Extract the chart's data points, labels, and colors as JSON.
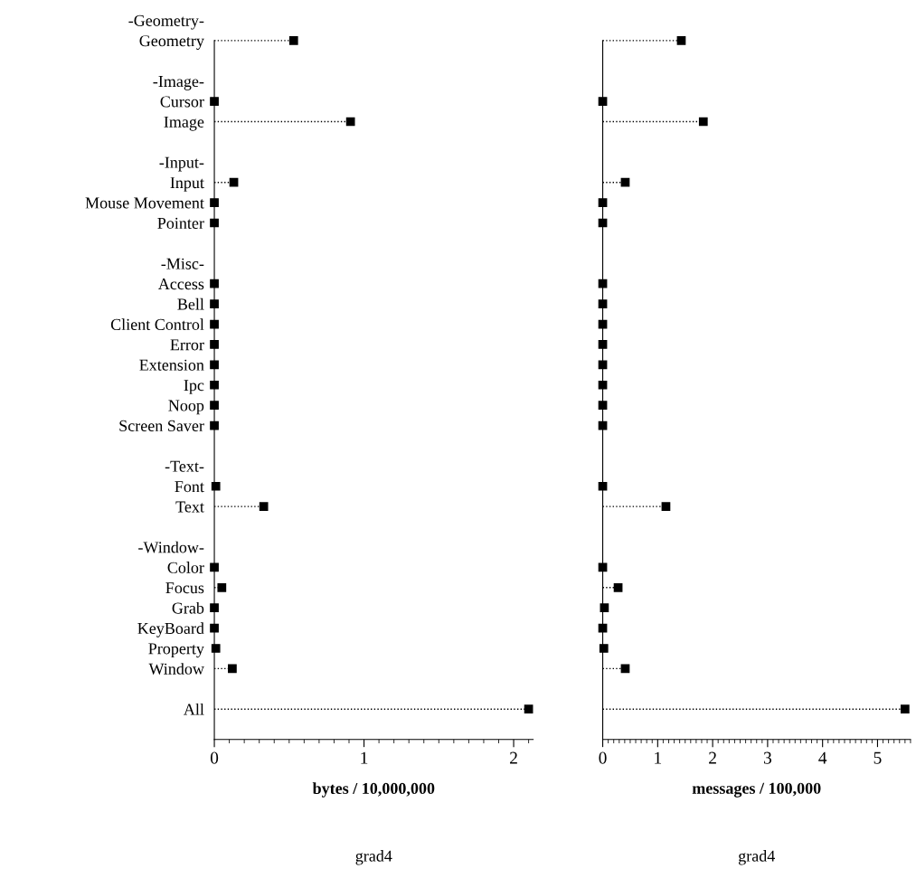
{
  "chart_data": [
    {
      "type": "lollipop",
      "orientation": "horizontal",
      "color": "#000000",
      "marker": "square",
      "line_style": "dotted",
      "categories": [
        "-Geometry-",
        "Geometry",
        null,
        "-Image-",
        "Cursor",
        "Image",
        null,
        "-Input-",
        "Input",
        "Mouse Movement",
        "Pointer",
        null,
        "-Misc-",
        "Access",
        "Bell",
        "Client Control",
        "Error",
        "Extension",
        "Ipc",
        "Noop",
        "Screen Saver",
        null,
        "-Text-",
        "Font",
        "Text",
        null,
        "-Window-",
        "Color",
        "Focus",
        "Grab",
        "KeyBoard",
        "Property",
        "Window",
        null,
        "All"
      ],
      "values": [
        null,
        0.53,
        null,
        null,
        0,
        0.91,
        null,
        null,
        0.13,
        0,
        0,
        null,
        null,
        0,
        0,
        0,
        0,
        0,
        0,
        0,
        0,
        null,
        null,
        0.01,
        0.33,
        null,
        null,
        0,
        0.05,
        0,
        0,
        0.01,
        0.12,
        null,
        2.1
      ],
      "xlim": [
        0,
        2.13
      ],
      "xticks": [
        0,
        1,
        2
      ],
      "xlabel": "bytes / 10,000,000",
      "annotations": [
        "grad4"
      ]
    },
    {
      "type": "lollipop",
      "orientation": "horizontal",
      "color": "#000000",
      "marker": "square",
      "line_style": "dotted",
      "tick_labels": "x",
      "values": [
        null,
        1.43,
        null,
        null,
        0,
        1.83,
        null,
        null,
        0.41,
        0,
        0,
        null,
        null,
        0,
        0,
        0,
        0,
        0,
        0,
        0,
        0,
        null,
        null,
        0,
        1.15,
        null,
        null,
        0,
        0.28,
        0.03,
        0,
        0.02,
        0.41,
        null,
        5.5
      ],
      "xlim": [
        0,
        5.6
      ],
      "xticks": [
        0,
        1,
        2,
        3,
        4,
        5
      ],
      "xlabel": "messages / 100,000",
      "annotations": [
        "grad4"
      ]
    }
  ]
}
